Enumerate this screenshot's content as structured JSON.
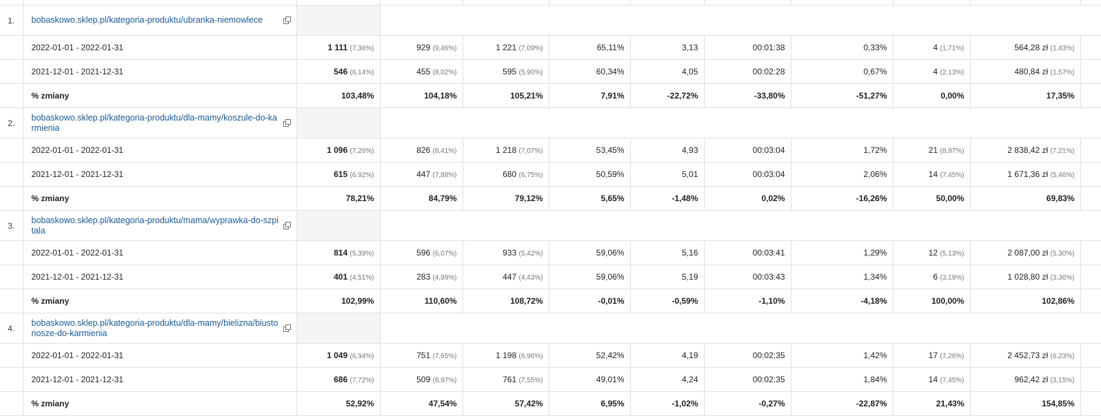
{
  "groups": [
    {
      "index": "1.",
      "url": "bobaskowo.sklep.pl/kategoria-produktu/ubranka-niemowlece",
      "rows": [
        {
          "label": "2022-01-01 - 2022-01-31",
          "c1": "1 111",
          "c1p": "(7,36%)",
          "c2": "929",
          "c2p": "(9,46%)",
          "c3": "1 221",
          "c3p": "(7,09%)",
          "c4": "65,11%",
          "c5": "3,13",
          "c6": "00:01:38",
          "c7": "0,33%",
          "c8": "4",
          "c8p": "(1,71%)",
          "c9": "564,28 zł",
          "c9p": "(1,43%)"
        },
        {
          "label": "2021-12-01 - 2021-12-31",
          "c1": "546",
          "c1p": "(6,14%)",
          "c2": "455",
          "c2p": "(8,02%)",
          "c3": "595",
          "c3p": "(5,90%)",
          "c4": "60,34%",
          "c5": "4,05",
          "c6": "00:02:28",
          "c7": "0,67%",
          "c8": "4",
          "c8p": "(2,13%)",
          "c9": "480,84 zł",
          "c9p": "(1,57%)"
        }
      ],
      "total": {
        "label": "% zmiany",
        "c1": "103,48%",
        "c2": "104,18%",
        "c3": "105,21%",
        "c4": "7,91%",
        "c5": "-22,72%",
        "c6": "-33,80%",
        "c7": "-51,27%",
        "c8": "0,00%",
        "c9": "17,35%"
      }
    },
    {
      "index": "2.",
      "url": "bobaskowo.sklep.pl/kategoria-produktu/dla-mamy/koszule-do-karmienia",
      "rows": [
        {
          "label": "2022-01-01 - 2022-01-31",
          "c1": "1 096",
          "c1p": "(7,26%)",
          "c2": "826",
          "c2p": "(8,41%)",
          "c3": "1 218",
          "c3p": "(7,07%)",
          "c4": "53,45%",
          "c5": "4,93",
          "c6": "00:03:04",
          "c7": "1,72%",
          "c8": "21",
          "c8p": "(8,97%)",
          "c9": "2 838,42 zł",
          "c9p": "(7,21%)"
        },
        {
          "label": "2021-12-01 - 2021-12-31",
          "c1": "615",
          "c1p": "(6,92%)",
          "c2": "447",
          "c2p": "(7,88%)",
          "c3": "680",
          "c3p": "(6,75%)",
          "c4": "50,59%",
          "c5": "5,01",
          "c6": "00:03:04",
          "c7": "2,06%",
          "c8": "14",
          "c8p": "(7,45%)",
          "c9": "1 671,36 zł",
          "c9p": "(5,46%)"
        }
      ],
      "total": {
        "label": "% zmiany",
        "c1": "78,21%",
        "c2": "84,79%",
        "c3": "79,12%",
        "c4": "5,65%",
        "c5": "-1,48%",
        "c6": "0,02%",
        "c7": "-16,26%",
        "c8": "50,00%",
        "c9": "69,83%"
      }
    },
    {
      "index": "3.",
      "url": "bobaskowo.sklep.pl/kategoria-produktu/mama/wyprawka-do-szpitala",
      "rows": [
        {
          "label": "2022-01-01 - 2022-01-31",
          "c1": "814",
          "c1p": "(5,39%)",
          "c2": "596",
          "c2p": "(6,07%)",
          "c3": "933",
          "c3p": "(5,42%)",
          "c4": "59,06%",
          "c5": "5,16",
          "c6": "00:03:41",
          "c7": "1,29%",
          "c8": "12",
          "c8p": "(5,13%)",
          "c9": "2 087,00 zł",
          "c9p": "(5,30%)"
        },
        {
          "label": "2021-12-01 - 2021-12-31",
          "c1": "401",
          "c1p": "(4,51%)",
          "c2": "283",
          "c2p": "(4,99%)",
          "c3": "447",
          "c3p": "(4,43%)",
          "c4": "59,06%",
          "c5": "5,19",
          "c6": "00:03:43",
          "c7": "1,34%",
          "c8": "6",
          "c8p": "(3,19%)",
          "c9": "1 028,80 zł",
          "c9p": "(3,36%)"
        }
      ],
      "total": {
        "label": "% zmiany",
        "c1": "102,99%",
        "c2": "110,60%",
        "c3": "108,72%",
        "c4": "-0,01%",
        "c5": "-0,59%",
        "c6": "-1,10%",
        "c7": "-4,18%",
        "c8": "100,00%",
        "c9": "102,86%"
      }
    },
    {
      "index": "4.",
      "url": "bobaskowo.sklep.pl/kategoria-produktu/dla-mamy/bielizna/biustonosze-do-karmienia",
      "rows": [
        {
          "label": "2022-01-01 - 2022-01-31",
          "c1": "1 049",
          "c1p": "(6,94%)",
          "c2": "751",
          "c2p": "(7,65%)",
          "c3": "1 198",
          "c3p": "(6,96%)",
          "c4": "52,42%",
          "c5": "4,19",
          "c6": "00:02:35",
          "c7": "1,42%",
          "c8": "17",
          "c8p": "(7,26%)",
          "c9": "2 452,73 zł",
          "c9p": "(6,23%)"
        },
        {
          "label": "2021-12-01 - 2021-12-31",
          "c1": "686",
          "c1p": "(7,72%)",
          "c2": "509",
          "c2p": "(8,97%)",
          "c3": "761",
          "c3p": "(7,55%)",
          "c4": "49,01%",
          "c5": "4,24",
          "c6": "00:02:35",
          "c7": "1,84%",
          "c8": "14",
          "c8p": "(7,45%)",
          "c9": "962,42 zł",
          "c9p": "(3,15%)"
        }
      ],
      "total": {
        "label": "% zmiany",
        "c1": "52,92%",
        "c2": "47,54%",
        "c3": "57,42%",
        "c4": "6,95%",
        "c5": "-1,02%",
        "c6": "-0,27%",
        "c7": "-22,87%",
        "c8": "21,43%",
        "c9": "154,85%"
      }
    }
  ],
  "icons": {
    "external_link": "external-link-icon"
  }
}
